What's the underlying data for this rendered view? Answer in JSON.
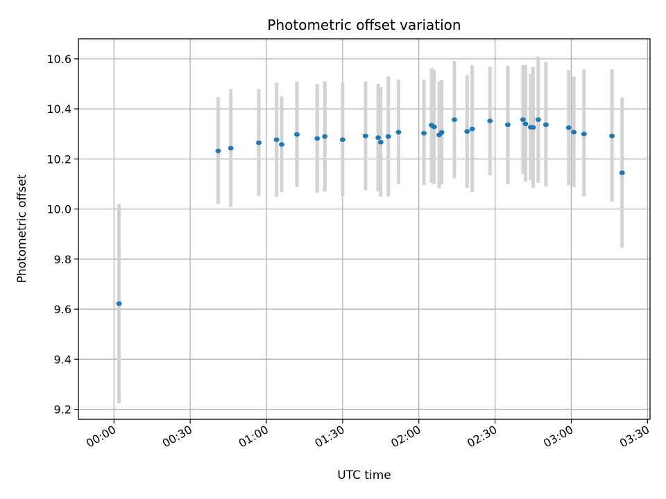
{
  "chart_data": {
    "type": "scatter",
    "title": "Photometric offset variation",
    "xlabel": "UTC time",
    "ylabel": "Photometric offset",
    "xlim": [
      "23:46",
      "03:31"
    ],
    "ylim": [
      9.16,
      10.68
    ],
    "grid": true,
    "x_ticks": [
      "00:00",
      "00:30",
      "01:00",
      "01:30",
      "02:00",
      "02:30",
      "03:00",
      "03:30"
    ],
    "y_ticks": [
      9.2,
      9.4,
      9.6,
      9.8,
      10.0,
      10.2,
      10.4,
      10.6
    ],
    "colors": {
      "points": "#1f77b4",
      "errorbars": "#d3d3d3"
    },
    "points": [
      {
        "x": "00:02",
        "y": 9.622,
        "lo": 9.225,
        "hi": 10.02
      },
      {
        "x": "00:41",
        "y": 10.232,
        "lo": 10.02,
        "hi": 10.447
      },
      {
        "x": "00:46",
        "y": 10.243,
        "lo": 10.008,
        "hi": 10.48
      },
      {
        "x": "00:57",
        "y": 10.265,
        "lo": 10.052,
        "hi": 10.48
      },
      {
        "x": "01:04",
        "y": 10.277,
        "lo": 10.048,
        "hi": 10.505
      },
      {
        "x": "01:06",
        "y": 10.258,
        "lo": 10.068,
        "hi": 10.45
      },
      {
        "x": "01:12",
        "y": 10.298,
        "lo": 10.088,
        "hi": 10.51
      },
      {
        "x": "01:20",
        "y": 10.282,
        "lo": 10.065,
        "hi": 10.5
      },
      {
        "x": "01:23",
        "y": 10.29,
        "lo": 10.07,
        "hi": 10.51
      },
      {
        "x": "01:30",
        "y": 10.277,
        "lo": 10.05,
        "hi": 10.505
      },
      {
        "x": "01:39",
        "y": 10.292,
        "lo": 10.075,
        "hi": 10.51
      },
      {
        "x": "01:44",
        "y": 10.285,
        "lo": 10.07,
        "hi": 10.5
      },
      {
        "x": "01:45",
        "y": 10.267,
        "lo": 10.05,
        "hi": 10.487
      },
      {
        "x": "01:48",
        "y": 10.29,
        "lo": 10.05,
        "hi": 10.53
      },
      {
        "x": "01:52",
        "y": 10.307,
        "lo": 10.1,
        "hi": 10.517
      },
      {
        "x": "02:02",
        "y": 10.303,
        "lo": 10.095,
        "hi": 10.517
      },
      {
        "x": "02:05",
        "y": 10.335,
        "lo": 10.105,
        "hi": 10.562
      },
      {
        "x": "02:06",
        "y": 10.328,
        "lo": 10.1,
        "hi": 10.557
      },
      {
        "x": "02:08",
        "y": 10.296,
        "lo": 10.083,
        "hi": 10.509
      },
      {
        "x": "02:09",
        "y": 10.306,
        "lo": 10.098,
        "hi": 10.514
      },
      {
        "x": "02:14",
        "y": 10.357,
        "lo": 10.122,
        "hi": 10.592
      },
      {
        "x": "02:19",
        "y": 10.31,
        "lo": 10.085,
        "hi": 10.535
      },
      {
        "x": "02:21",
        "y": 10.32,
        "lo": 10.068,
        "hi": 10.575
      },
      {
        "x": "02:28",
        "y": 10.352,
        "lo": 10.135,
        "hi": 10.569
      },
      {
        "x": "02:35",
        "y": 10.337,
        "lo": 10.1,
        "hi": 10.572
      },
      {
        "x": "02:41",
        "y": 10.357,
        "lo": 10.14,
        "hi": 10.575
      },
      {
        "x": "02:42",
        "y": 10.34,
        "lo": 10.11,
        "hi": 10.575
      },
      {
        "x": "02:44",
        "y": 10.327,
        "lo": 10.115,
        "hi": 10.54
      },
      {
        "x": "02:45",
        "y": 10.326,
        "lo": 10.085,
        "hi": 10.568
      },
      {
        "x": "02:47",
        "y": 10.357,
        "lo": 10.105,
        "hi": 10.61
      },
      {
        "x": "02:50",
        "y": 10.337,
        "lo": 10.09,
        "hi": 10.587
      },
      {
        "x": "02:59",
        "y": 10.325,
        "lo": 10.095,
        "hi": 10.555
      },
      {
        "x": "03:01",
        "y": 10.307,
        "lo": 10.088,
        "hi": 10.53
      },
      {
        "x": "03:05",
        "y": 10.3,
        "lo": 10.05,
        "hi": 10.558
      },
      {
        "x": "03:16",
        "y": 10.292,
        "lo": 10.03,
        "hi": 10.558
      },
      {
        "x": "03:20",
        "y": 10.145,
        "lo": 9.845,
        "hi": 10.445
      }
    ]
  }
}
